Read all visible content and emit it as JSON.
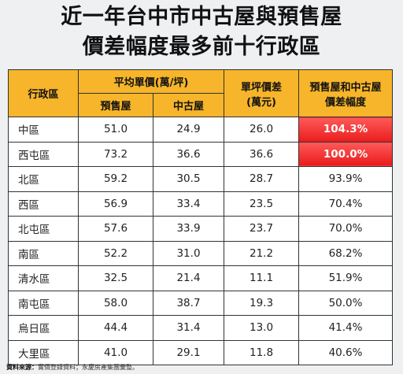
{
  "title_line1": "近一年台中市中古屋與預售屋",
  "title_line2": "價差幅度最多前十行政區",
  "headers": {
    "district": "行政區",
    "avg_price": "平均單價(萬/坪)",
    "presale": "預售屋",
    "used": "中古屋",
    "diff": "單坪價差\n(萬元)",
    "ratio": "預售屋和中古屋\n價差幅度"
  },
  "rows": [
    {
      "district": "中區",
      "presale": "51.0",
      "used": "24.9",
      "diff": "26.0",
      "ratio": "104.3%"
    },
    {
      "district": "西屯區",
      "presale": "73.2",
      "used": "36.6",
      "diff": "36.6",
      "ratio": "100.0%"
    },
    {
      "district": "北區",
      "presale": "59.2",
      "used": "30.5",
      "diff": "28.7",
      "ratio": "93.9%"
    },
    {
      "district": "西區",
      "presale": "56.9",
      "used": "33.4",
      "diff": "23.5",
      "ratio": "70.4%"
    },
    {
      "district": "北屯區",
      "presale": "57.6",
      "used": "33.9",
      "diff": "23.7",
      "ratio": "70.0%"
    },
    {
      "district": "南區",
      "presale": "52.2",
      "used": "31.0",
      "diff": "21.2",
      "ratio": "68.2%"
    },
    {
      "district": "清水區",
      "presale": "32.5",
      "used": "21.4",
      "diff": "11.1",
      "ratio": "51.9%"
    },
    {
      "district": "南屯區",
      "presale": "58.0",
      "used": "38.7",
      "diff": "19.3",
      "ratio": "50.0%"
    },
    {
      "district": "烏日區",
      "presale": "44.4",
      "used": "31.4",
      "diff": "13.0",
      "ratio": "41.4%"
    },
    {
      "district": "大里區",
      "presale": "41.0",
      "used": "29.1",
      "diff": "11.8",
      "ratio": "40.6%"
    }
  ],
  "highlight_rows": 2,
  "highlight_color": "#e91c1c",
  "header_color": "#f6b52a",
  "source_label": "資料來源：",
  "source_text": "實價登錄資料；永慶房產集團彙整。"
}
